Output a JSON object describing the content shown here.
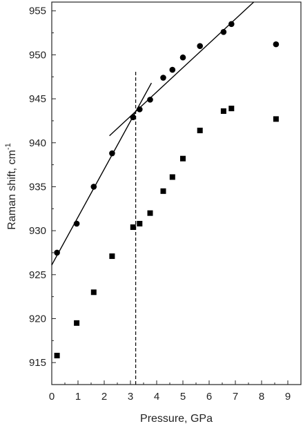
{
  "chart_data": {
    "type": "scatter",
    "title": "",
    "xlabel": "Pressure, GPa",
    "ylabel_text": "Raman shift, cm",
    "ylabel_superscript": "-1",
    "xlim": [
      0,
      9.5
    ],
    "ylim": [
      912.5,
      956
    ],
    "xticks": [
      0,
      1,
      2,
      3,
      4,
      5,
      6,
      7,
      8,
      9
    ],
    "yticks": [
      915,
      920,
      925,
      930,
      935,
      940,
      945,
      950,
      955
    ],
    "series": [
      {
        "marker": "circle",
        "color": "#000000",
        "points": [
          [
            0.2,
            927.5
          ],
          [
            0.95,
            930.8
          ],
          [
            1.6,
            935.0
          ],
          [
            2.3,
            938.8
          ],
          [
            3.1,
            942.9
          ],
          [
            3.35,
            943.8
          ],
          [
            3.75,
            944.9
          ],
          [
            4.25,
            947.4
          ],
          [
            4.6,
            948.3
          ],
          [
            5.0,
            949.7
          ],
          [
            5.65,
            951.0
          ],
          [
            6.55,
            952.6
          ],
          [
            6.85,
            953.5
          ],
          [
            8.55,
            951.2
          ]
        ]
      },
      {
        "marker": "square",
        "color": "#000000",
        "points": [
          [
            0.2,
            915.8
          ],
          [
            0.95,
            919.5
          ],
          [
            1.6,
            923.0
          ],
          [
            2.3,
            927.1
          ],
          [
            3.1,
            930.4
          ],
          [
            3.35,
            930.8
          ],
          [
            3.75,
            932.0
          ],
          [
            4.25,
            934.5
          ],
          [
            4.6,
            936.1
          ],
          [
            5.0,
            938.2
          ],
          [
            5.65,
            941.4
          ],
          [
            6.55,
            943.6
          ],
          [
            6.85,
            943.9
          ],
          [
            8.55,
            942.7
          ]
        ]
      }
    ],
    "fit_lines": [
      {
        "x1": 0.0,
        "y1": 926.1,
        "x2": 3.8,
        "y2": 946.8
      },
      {
        "x1": 2.2,
        "y1": 940.8,
        "x2": 7.7,
        "y2": 956.0
      }
    ],
    "vertical_dashed_line": {
      "x": 3.2,
      "y_from": 912.5,
      "y_to": 948.2
    },
    "grid": false,
    "legend": "none"
  }
}
